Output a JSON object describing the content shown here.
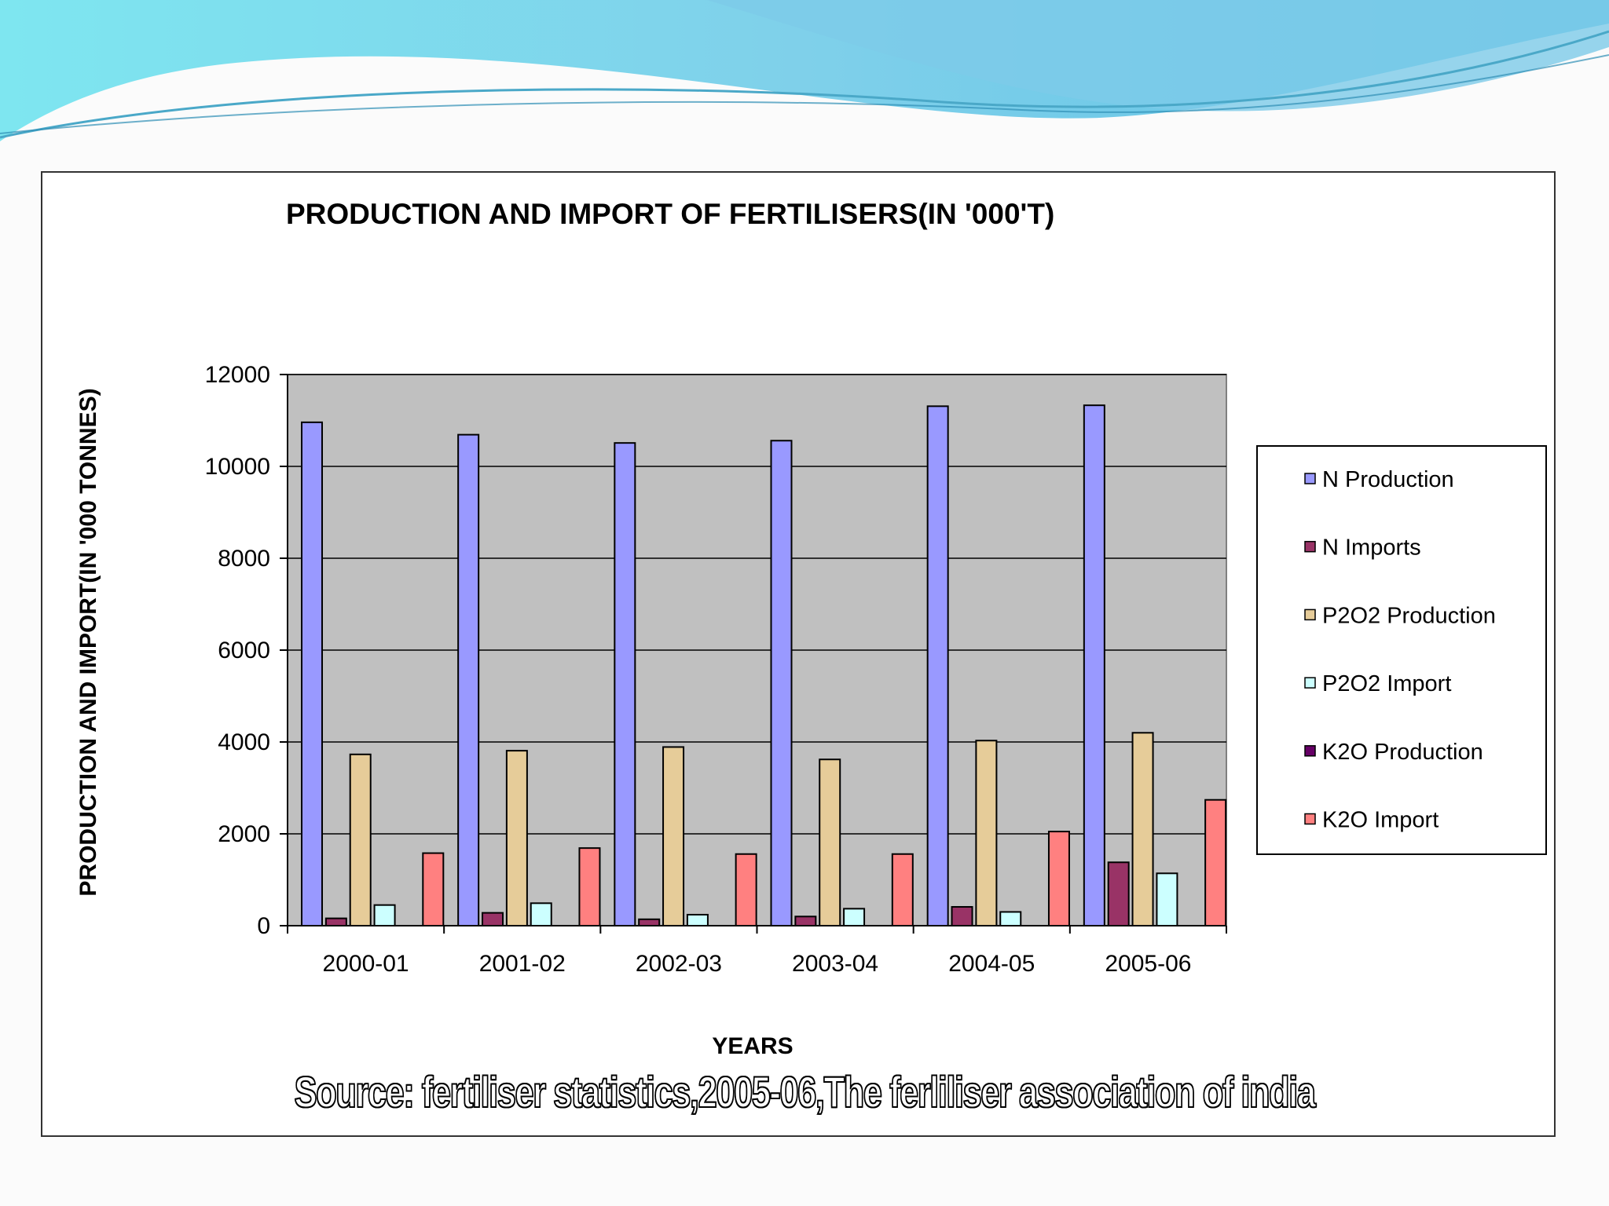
{
  "slide": {
    "source_note": "Source: fertiliser statistics,2005-06,The ferliliser association of india"
  },
  "chart_data": {
    "type": "bar",
    "title": "PRODUCTION AND IMPORT OF FERTILISERS(IN '000'T)",
    "xlabel": "YEARS",
    "ylabel": "PRODUCTION AND IMPORT(IN '000 TONNES)",
    "ylim": [
      0,
      12000
    ],
    "yticks": [
      0,
      2000,
      4000,
      6000,
      8000,
      10000,
      12000
    ],
    "grid": true,
    "legend_position": "right",
    "categories": [
      "2000-01",
      "2001-02",
      "2002-03",
      "2003-04",
      "2004-05",
      "2005-06"
    ],
    "series": [
      {
        "name": "N Production",
        "color": "#9999ff",
        "values": [
          10960,
          10690,
          10510,
          10560,
          11310,
          11330
        ]
      },
      {
        "name": "N Imports",
        "color": "#993366",
        "values": [
          160,
          280,
          140,
          200,
          410,
          1380
        ]
      },
      {
        "name": "P2O2 Production",
        "color": "#e6cc99",
        "values": [
          3730,
          3810,
          3890,
          3620,
          4030,
          4200
        ]
      },
      {
        "name": "P2O2 Import",
        "color": "#ccffff",
        "values": [
          450,
          490,
          240,
          370,
          300,
          1140
        ]
      },
      {
        "name": "K2O Production",
        "color": "#660066",
        "values": [
          0,
          0,
          0,
          0,
          0,
          0
        ]
      },
      {
        "name": "K2O Import",
        "color": "#ff8080",
        "values": [
          1580,
          1690,
          1560,
          1560,
          2050,
          2740
        ]
      }
    ]
  }
}
